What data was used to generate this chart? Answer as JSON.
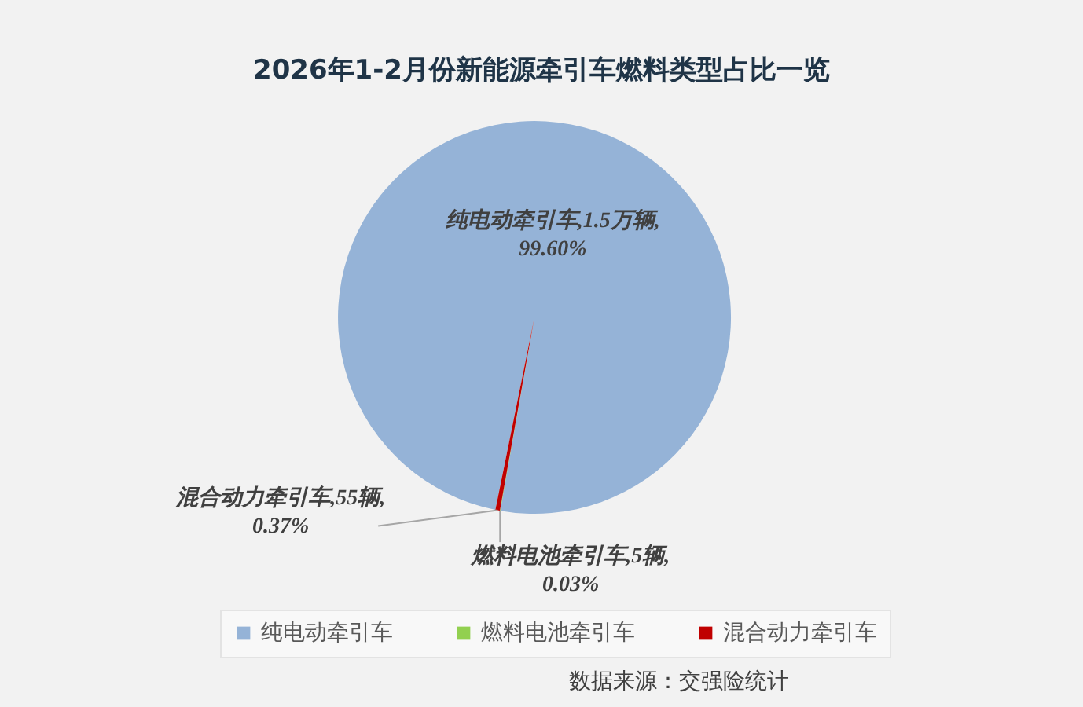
{
  "chart_data": {
    "type": "pie",
    "title": "2026年1-2月份新能源牵引车燃料类型占比一览",
    "categories": [
      "纯电动牵引车",
      "燃料电池牵引车",
      "混合动力牵引车"
    ],
    "values": [
      99.6,
      0.03,
      0.37
    ],
    "colors": [
      "#95b3d7",
      "#92d050",
      "#c00000"
    ],
    "value_labels": [
      "纯电动牵引车,1.5万辆,\n99.60%",
      "燃料电池牵引车,5辆,\n0.03%",
      "混合动力牵引车,55辆,\n0.37%"
    ],
    "legend": "bottom",
    "annotations": [
      "数据来源：交强险统计"
    ]
  }
}
